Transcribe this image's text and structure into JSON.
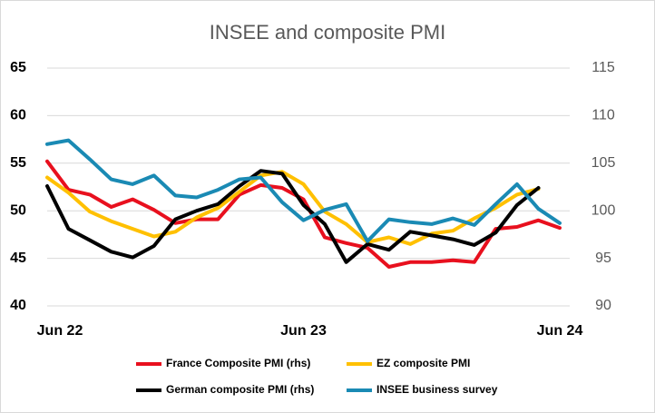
{
  "chart_data": {
    "type": "line",
    "title": "INSEE and composite PMI",
    "categories": [
      "Jun 22",
      null,
      null,
      null,
      null,
      null,
      null,
      null,
      null,
      null,
      null,
      null,
      "Jun 23",
      null,
      null,
      null,
      null,
      null,
      null,
      null,
      null,
      null,
      null,
      null,
      "Jun 24"
    ],
    "ylim": [
      40,
      65
    ],
    "yticks": [
      40,
      45,
      50,
      55,
      60,
      65
    ],
    "y2lim": [
      90,
      115
    ],
    "y2ticks": [
      90,
      95,
      100,
      105,
      110,
      115
    ],
    "grid": true,
    "series": [
      {
        "name": "France Composite PMI (rhs)",
        "color": "#e8101e",
        "values": [
          55.2,
          52.2,
          51.7,
          50.4,
          51.2,
          50.1,
          48.7,
          49.1,
          49.1,
          51.7,
          52.7,
          52.4,
          51.2,
          47.2,
          46.6,
          46.1,
          44.1,
          44.6,
          44.6,
          44.8,
          44.6,
          48.1,
          48.3,
          49.0,
          48.2
        ]
      },
      {
        "name": "EZ composite PMI",
        "color": "#ffc000",
        "values": [
          53.5,
          51.9,
          49.9,
          48.9,
          48.1,
          47.3,
          47.8,
          49.3,
          50.3,
          52.0,
          53.7,
          54.1,
          52.8,
          49.9,
          48.6,
          46.7,
          47.2,
          46.5,
          47.6,
          47.9,
          49.2,
          50.3,
          51.7,
          52.3,
          null
        ]
      },
      {
        "name": "German composite PMI (rhs)",
        "color": "#000000",
        "values": [
          52.6,
          48.1,
          46.9,
          45.7,
          45.1,
          46.3,
          49.1,
          50.0,
          50.7,
          52.6,
          54.2,
          53.9,
          50.6,
          48.6,
          44.6,
          46.5,
          45.9,
          47.8,
          47.4,
          47.0,
          46.4,
          47.7,
          50.6,
          52.4,
          null
        ]
      },
      {
        "name": "INSEE business survey",
        "color": "#1a8ab4",
        "axis": "y2",
        "values": [
          107.0,
          107.4,
          105.4,
          103.3,
          102.8,
          103.7,
          101.6,
          101.4,
          102.2,
          103.3,
          103.5,
          100.9,
          99.0,
          100.1,
          100.7,
          96.8,
          99.1,
          98.8,
          98.6,
          99.2,
          98.5,
          100.7,
          102.8,
          100.2,
          98.7
        ]
      }
    ]
  }
}
